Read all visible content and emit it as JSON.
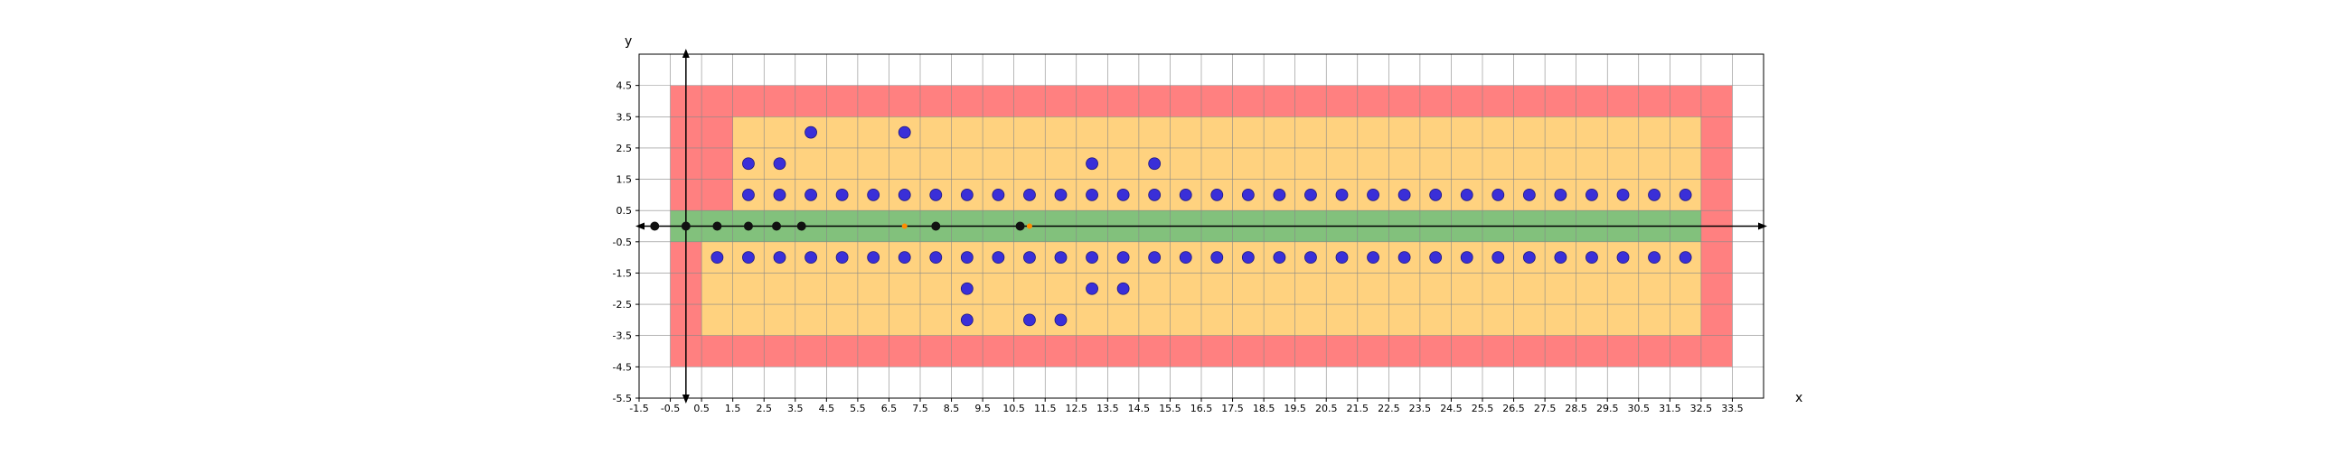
{
  "chart_data": {
    "type": "scatter",
    "xlabel": "x",
    "ylabel": "y",
    "xlim": [
      -1.5,
      34.5
    ],
    "ylim": [
      -5.5,
      5.5
    ],
    "x_ticks": [
      -1.5,
      -0.5,
      0.5,
      1.5,
      2.5,
      3.5,
      4.5,
      5.5,
      6.5,
      7.5,
      8.5,
      9.5,
      10.5,
      11.5,
      12.5,
      13.5,
      14.5,
      15.5,
      16.5,
      17.5,
      18.5,
      19.5,
      20.5,
      21.5,
      22.5,
      23.5,
      24.5,
      25.5,
      26.5,
      27.5,
      28.5,
      29.5,
      30.5,
      31.5,
      32.5,
      33.5
    ],
    "x_tick_labels": [
      "-1.5",
      "-0.5",
      "0.5",
      "1.5",
      "2.5",
      "3.5",
      "4.5",
      "5.5",
      "6.5",
      "7.5",
      "8.5",
      "9.5",
      "10.5",
      "11.5",
      "12.5",
      "13.5",
      "14.5",
      "15.5",
      "16.5",
      "17.5",
      "18.5",
      "19.5",
      "20.5",
      "21.5",
      "22.5",
      "23.5",
      "24.5",
      "25.5",
      "26.5",
      "27.5",
      "28.5",
      "29.5",
      "30.5",
      "31.5",
      "32.5",
      "33.5"
    ],
    "y_ticks": [
      -5.5,
      -4.5,
      -3.5,
      -2.5,
      -1.5,
      -0.5,
      0.5,
      1.5,
      2.5,
      3.5,
      4.5
    ],
    "y_tick_labels": [
      "-5.5",
      "-4.5",
      "-3.5",
      "-2.5",
      "-1.5",
      "-0.5",
      "0.5",
      "1.5",
      "2.5",
      "3.5",
      "4.5"
    ],
    "grid": true,
    "colors": {
      "red_region": "#ff8080",
      "orange_region": "#ffd27f",
      "green_region": "#82c17c",
      "blue_points": "#3a2fd8",
      "black_points": "#111111",
      "orange_marker": "#ff8c00",
      "grid": "#888888"
    },
    "regions": [
      {
        "name": "outer-red",
        "color": "#ff8080",
        "x": [
          -0.5,
          33.5
        ],
        "y": [
          -4.5,
          4.5
        ]
      },
      {
        "name": "orange-upper",
        "color": "#ffd27f",
        "x": [
          1.5,
          32.5
        ],
        "y": [
          0.5,
          3.5
        ]
      },
      {
        "name": "orange-lower",
        "color": "#ffd27f",
        "x": [
          0.5,
          32.5
        ],
        "y": [
          -3.5,
          -0.5
        ]
      },
      {
        "name": "green-band",
        "color": "#82c17c",
        "x": [
          -0.5,
          32.5
        ],
        "y": [
          -0.5,
          0.5
        ]
      }
    ],
    "blue_points": [
      [
        2,
        1
      ],
      [
        3,
        1
      ],
      [
        4,
        1
      ],
      [
        5,
        1
      ],
      [
        6,
        1
      ],
      [
        7,
        1
      ],
      [
        8,
        1
      ],
      [
        9,
        1
      ],
      [
        10,
        1
      ],
      [
        11,
        1
      ],
      [
        12,
        1
      ],
      [
        13,
        1
      ],
      [
        14,
        1
      ],
      [
        15,
        1
      ],
      [
        16,
        1
      ],
      [
        17,
        1
      ],
      [
        18,
        1
      ],
      [
        19,
        1
      ],
      [
        20,
        1
      ],
      [
        21,
        1
      ],
      [
        22,
        1
      ],
      [
        23,
        1
      ],
      [
        24,
        1
      ],
      [
        25,
        1
      ],
      [
        26,
        1
      ],
      [
        27,
        1
      ],
      [
        28,
        1
      ],
      [
        29,
        1
      ],
      [
        30,
        1
      ],
      [
        31,
        1
      ],
      [
        32,
        1
      ],
      [
        2,
        2
      ],
      [
        3,
        2
      ],
      [
        13,
        2
      ],
      [
        15,
        2
      ],
      [
        4,
        3
      ],
      [
        7,
        3
      ],
      [
        1,
        -1
      ],
      [
        2,
        -1
      ],
      [
        3,
        -1
      ],
      [
        4,
        -1
      ],
      [
        5,
        -1
      ],
      [
        6,
        -1
      ],
      [
        7,
        -1
      ],
      [
        8,
        -1
      ],
      [
        9,
        -1
      ],
      [
        10,
        -1
      ],
      [
        11,
        -1
      ],
      [
        12,
        -1
      ],
      [
        13,
        -1
      ],
      [
        14,
        -1
      ],
      [
        15,
        -1
      ],
      [
        16,
        -1
      ],
      [
        17,
        -1
      ],
      [
        18,
        -1
      ],
      [
        19,
        -1
      ],
      [
        20,
        -1
      ],
      [
        21,
        -1
      ],
      [
        22,
        -1
      ],
      [
        23,
        -1
      ],
      [
        24,
        -1
      ],
      [
        25,
        -1
      ],
      [
        26,
        -1
      ],
      [
        27,
        -1
      ],
      [
        28,
        -1
      ],
      [
        29,
        -1
      ],
      [
        30,
        -1
      ],
      [
        31,
        -1
      ],
      [
        32,
        -1
      ],
      [
        9,
        -2
      ],
      [
        13,
        -2
      ],
      [
        14,
        -2
      ],
      [
        9,
        -3
      ],
      [
        11,
        -3
      ],
      [
        12,
        -3
      ]
    ],
    "black_points": [
      [
        -1,
        0
      ],
      [
        0,
        0
      ],
      [
        1,
        0
      ],
      [
        2,
        0
      ],
      [
        2.9,
        0
      ],
      [
        3.7,
        0
      ],
      [
        8,
        0
      ],
      [
        10.7,
        0
      ]
    ],
    "orange_markers": [
      [
        7,
        0
      ],
      [
        11,
        0
      ]
    ]
  }
}
